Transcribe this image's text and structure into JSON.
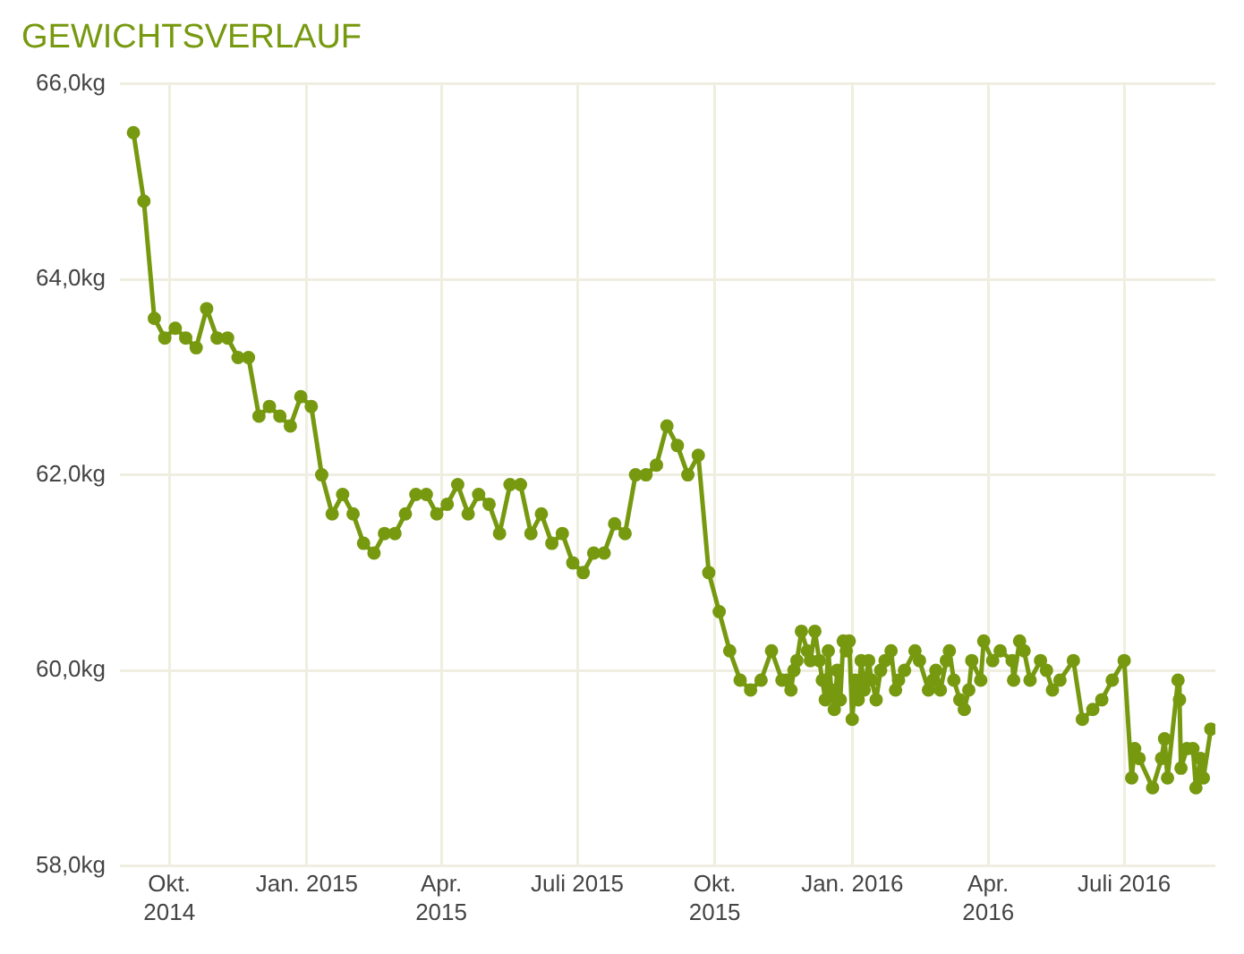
{
  "chart_data": {
    "type": "line",
    "title": "GEWICHTSVERLAUF",
    "x": [
      "2014-09-07",
      "2014-09-14",
      "2014-09-21",
      "2014-09-28",
      "2014-10-05",
      "2014-10-12",
      "2014-10-19",
      "2014-10-26",
      "2014-11-02",
      "2014-11-09",
      "2014-11-16",
      "2014-11-23",
      "2014-11-30",
      "2014-12-07",
      "2014-12-14",
      "2014-12-21",
      "2014-12-28",
      "2015-01-04",
      "2015-01-11",
      "2015-01-18",
      "2015-01-25",
      "2015-02-01",
      "2015-02-08",
      "2015-02-15",
      "2015-02-22",
      "2015-03-01",
      "2015-03-08",
      "2015-03-15",
      "2015-03-22",
      "2015-03-29",
      "2015-04-05",
      "2015-04-12",
      "2015-04-19",
      "2015-04-26",
      "2015-05-03",
      "2015-05-10",
      "2015-05-17",
      "2015-05-24",
      "2015-05-31",
      "2015-06-07",
      "2015-06-14",
      "2015-06-21",
      "2015-06-28",
      "2015-07-05",
      "2015-07-12",
      "2015-07-19",
      "2015-07-26",
      "2015-08-02",
      "2015-08-09",
      "2015-08-16",
      "2015-08-23",
      "2015-08-30",
      "2015-09-06",
      "2015-09-13",
      "2015-09-20",
      "2015-09-27",
      "2015-10-04",
      "2015-10-11",
      "2015-10-18",
      "2015-10-25",
      "2015-11-01",
      "2015-11-08",
      "2015-11-15",
      "2015-11-18",
      "2015-11-21",
      "2015-11-23",
      "2015-11-25",
      "2015-11-28",
      "2015-12-02",
      "2015-12-04",
      "2015-12-07",
      "2015-12-10",
      "2015-12-12",
      "2015-12-14",
      "2015-12-16",
      "2015-12-18",
      "2015-12-20",
      "2015-12-22",
      "2015-12-24",
      "2015-12-26",
      "2015-12-28",
      "2015-12-30",
      "2016-01-01",
      "2016-01-03",
      "2016-01-05",
      "2016-01-07",
      "2016-01-09",
      "2016-01-12",
      "2016-01-14",
      "2016-01-17",
      "2016-01-20",
      "2016-01-23",
      "2016-01-27",
      "2016-01-30",
      "2016-02-01",
      "2016-02-05",
      "2016-02-12",
      "2016-02-15",
      "2016-02-21",
      "2016-02-24",
      "2016-02-26",
      "2016-02-29",
      "2016-03-04",
      "2016-03-06",
      "2016-03-09",
      "2016-03-13",
      "2016-03-16",
      "2016-03-19",
      "2016-03-21",
      "2016-03-27",
      "2016-03-29",
      "2016-04-04",
      "2016-04-09",
      "2016-04-17",
      "2016-04-18",
      "2016-04-22",
      "2016-04-25",
      "2016-04-29",
      "2016-05-06",
      "2016-05-10",
      "2016-05-14",
      "2016-05-19",
      "2016-05-28",
      "2016-06-03",
      "2016-06-10",
      "2016-06-16",
      "2016-06-23",
      "2016-07-01",
      "2016-07-06",
      "2016-07-08",
      "2016-07-11",
      "2016-07-20",
      "2016-07-26",
      "2016-07-28",
      "2016-07-30",
      "2016-08-06",
      "2016-08-07",
      "2016-08-08",
      "2016-08-12",
      "2016-08-16",
      "2016-08-18",
      "2016-08-21",
      "2016-08-23",
      "2016-08-28"
    ],
    "series": [
      {
        "color": "#76990f",
        "values": [
          65.5,
          64.8,
          63.6,
          63.4,
          63.5,
          63.4,
          63.3,
          63.7,
          63.4,
          63.4,
          63.2,
          63.2,
          62.6,
          62.7,
          62.6,
          62.5,
          62.8,
          62.7,
          62.0,
          61.6,
          61.8,
          61.6,
          61.3,
          61.2,
          61.4,
          61.4,
          61.6,
          61.8,
          61.8,
          61.6,
          61.7,
          61.9,
          61.6,
          61.8,
          61.7,
          61.4,
          61.9,
          61.9,
          61.4,
          61.6,
          61.3,
          61.4,
          61.1,
          61.0,
          61.2,
          61.2,
          61.5,
          61.4,
          62.0,
          62.0,
          62.1,
          62.5,
          62.3,
          62.0,
          62.2,
          61.0,
          60.6,
          60.2,
          59.9,
          59.8,
          59.9,
          60.2,
          59.9,
          59.9,
          59.8,
          60.0,
          60.1,
          60.4,
          60.2,
          60.1,
          60.4,
          60.1,
          59.9,
          59.7,
          60.2,
          59.8,
          59.6,
          60.0,
          59.7,
          60.3,
          60.2,
          60.3,
          59.5,
          59.9,
          59.7,
          60.1,
          59.8,
          60.1,
          59.9,
          59.7,
          60.0,
          60.1,
          60.2,
          59.8,
          59.9,
          60.0,
          60.2,
          60.1,
          59.8,
          59.9,
          60.0,
          59.8,
          60.1,
          60.2,
          59.9,
          59.7,
          59.6,
          59.8,
          60.1,
          59.9,
          60.3,
          60.1,
          60.2,
          60.1,
          59.9,
          60.3,
          60.2,
          59.9,
          60.1,
          60.0,
          59.8,
          59.9,
          60.1,
          59.5,
          59.6,
          59.7,
          59.9,
          60.1,
          58.9,
          59.2,
          59.1,
          58.8,
          59.1,
          59.3,
          58.9,
          59.9,
          59.7,
          59.0,
          59.2,
          59.2,
          58.8,
          59.1,
          58.9,
          59.4
        ]
      }
    ],
    "xlim": [
      "2014-08-29",
      "2016-08-31"
    ],
    "xticks": [
      {
        "value": "2014-10-01",
        "label": "Okt.\n2014"
      },
      {
        "value": "2015-01-01",
        "label": "Jan. 2015"
      },
      {
        "value": "2015-04-01",
        "label": "Apr.\n2015"
      },
      {
        "value": "2015-07-01",
        "label": "Juli 2015"
      },
      {
        "value": "2015-10-01",
        "label": "Okt.\n2015"
      },
      {
        "value": "2016-01-01",
        "label": "Jan. 2016"
      },
      {
        "value": "2016-04-01",
        "label": "Apr.\n2016"
      },
      {
        "value": "2016-07-01",
        "label": "Juli 2016"
      }
    ],
    "ylim": [
      58,
      66
    ],
    "yticks": [
      {
        "value": 58,
        "label": "58,0kg"
      },
      {
        "value": 60,
        "label": "60,0kg"
      },
      {
        "value": 62,
        "label": "62,0kg"
      },
      {
        "value": 64,
        "label": "64,0kg"
      },
      {
        "value": 66,
        "label": "66,0kg"
      }
    ],
    "grid": true,
    "marker": "circle",
    "legend": false
  }
}
